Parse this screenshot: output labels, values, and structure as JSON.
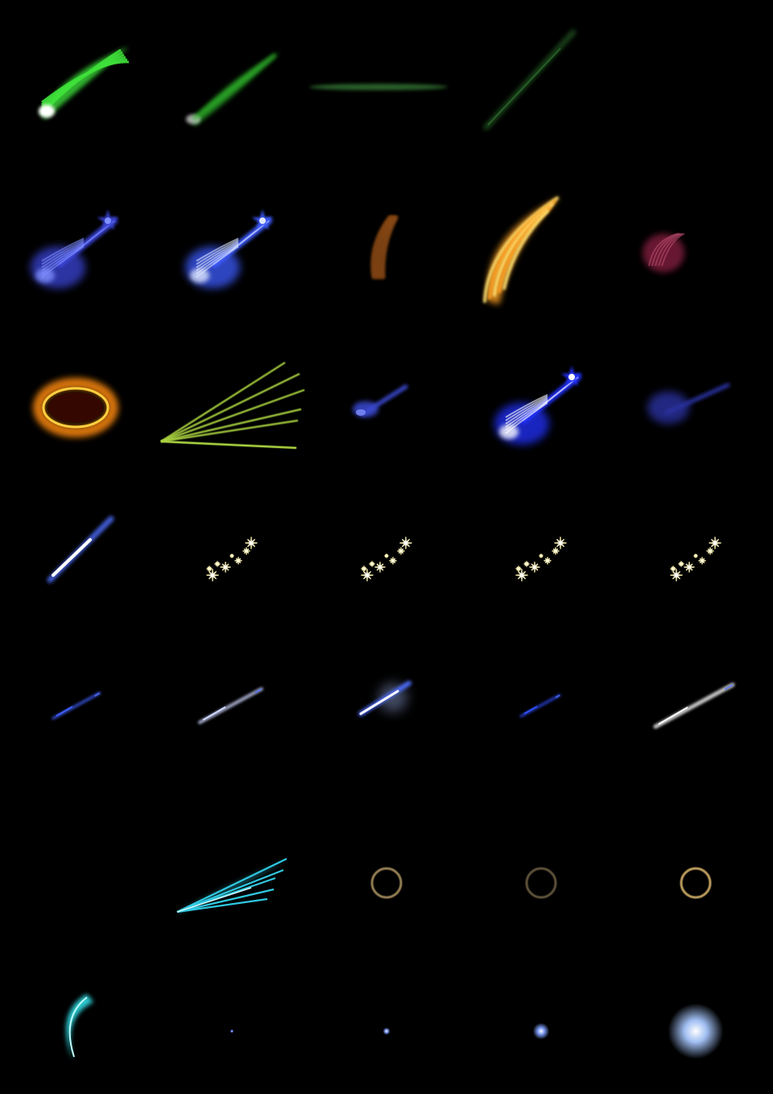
{
  "sprite_sheet": {
    "columns": 5,
    "rows": 7,
    "background": "#000000",
    "cells": [
      {
        "name": "green-comet-bright-sprite",
        "kind": "comet",
        "color": "#3ee03a",
        "head": "#ffffff"
      },
      {
        "name": "green-comet-soft-sprite",
        "kind": "comet-thin",
        "color": "#2fb52a",
        "head": "#cfcfcf"
      },
      {
        "name": "green-streak-horizontal-sprite",
        "kind": "streak-h",
        "color": "#2f6a2f"
      },
      {
        "name": "green-streak-diagonal-sprite",
        "kind": "streak-d",
        "color": "#1f4a1f"
      },
      {
        "name": "empty-cell",
        "kind": "empty"
      },
      {
        "name": "blue-star-comet-dim-sprite",
        "kind": "star-comet",
        "color": "#3b44d8",
        "head": "#8090ff",
        "scale": 1
      },
      {
        "name": "blue-star-comet-bright-sprite",
        "kind": "star-comet",
        "color": "#3d5bff",
        "head": "#e0e8ff",
        "scale": 1
      },
      {
        "name": "brown-flame-sprite",
        "kind": "flame",
        "color": "#8a4a12"
      },
      {
        "name": "orange-flame-tail-sprite",
        "kind": "flame-big",
        "color": "#ffa020",
        "head": "#ffe070"
      },
      {
        "name": "crimson-flame-sprite",
        "kind": "flame-round",
        "color": "#7a1a3a"
      },
      {
        "name": "fire-ring-sprite",
        "kind": "fire-ring",
        "color": "#ff8a10"
      },
      {
        "name": "green-light-rays-sprite",
        "kind": "rays",
        "color": "#a8d040"
      },
      {
        "name": "blue-small-comet-sprite",
        "kind": "comet-small",
        "color": "#3a4ad0",
        "head": "#8090ff"
      },
      {
        "name": "blue-star-comet-sprite",
        "kind": "star-comet",
        "color": "#2233ff",
        "head": "#ffffff",
        "scale": 1
      },
      {
        "name": "blue-dim-comet-sprite",
        "kind": "comet-dim",
        "color": "#2a33a0"
      },
      {
        "name": "blue-white-streak-sprite",
        "kind": "white-streak",
        "color": "#5070ff"
      },
      {
        "name": "sparkle-trail-1-sprite",
        "kind": "sparkles",
        "color": "#fff6b0"
      },
      {
        "name": "sparkle-trail-2-sprite",
        "kind": "sparkles",
        "color": "#fff6b0"
      },
      {
        "name": "sparkle-trail-3-sprite",
        "kind": "sparkles",
        "color": "#fff6b0"
      },
      {
        "name": "sparkle-trail-4-sprite",
        "kind": "sparkles",
        "color": "#fff6b0"
      },
      {
        "name": "blue-dash-1-sprite",
        "kind": "dash",
        "color": "#4060ff",
        "size": 0.6
      },
      {
        "name": "blue-dash-2-sprite",
        "kind": "dash",
        "color": "#d0d8ff",
        "size": 0.8
      },
      {
        "name": "blue-dash-glow-sprite",
        "kind": "dash-glow",
        "color": "#ffffff",
        "size": 0.9
      },
      {
        "name": "blue-dash-3-sprite",
        "kind": "dash",
        "color": "#3050ff",
        "size": 0.5
      },
      {
        "name": "blue-dash-4-sprite",
        "kind": "dash",
        "color": "#ffffff",
        "size": 1
      },
      {
        "name": "empty-cell-2",
        "kind": "empty"
      },
      {
        "name": "cyan-light-rays-sprite",
        "kind": "cyan-rays",
        "color": "#30c8e0"
      },
      {
        "name": "ring-1-sprite",
        "kind": "ring",
        "color": "#a89060",
        "opacity": 0.9
      },
      {
        "name": "ring-2-sprite",
        "kind": "ring",
        "color": "#807050",
        "opacity": 0.75
      },
      {
        "name": "ring-3-sprite",
        "kind": "ring",
        "color": "#c0a060",
        "opacity": 1
      },
      {
        "name": "cyan-crescent-sprite",
        "kind": "crescent",
        "color": "#30e0e8"
      },
      {
        "name": "blue-orb-tiny-sprite",
        "kind": "orb",
        "color": "#6080ff",
        "size": 2
      },
      {
        "name": "blue-orb-small-sprite",
        "kind": "orb",
        "color": "#80a0ff",
        "size": 4
      },
      {
        "name": "blue-orb-medium-sprite",
        "kind": "orb",
        "color": "#80a0ff",
        "size": 9
      },
      {
        "name": "blue-orb-large-sprite",
        "kind": "orb",
        "color": "#a8c8ff",
        "size": 30
      }
    ]
  }
}
